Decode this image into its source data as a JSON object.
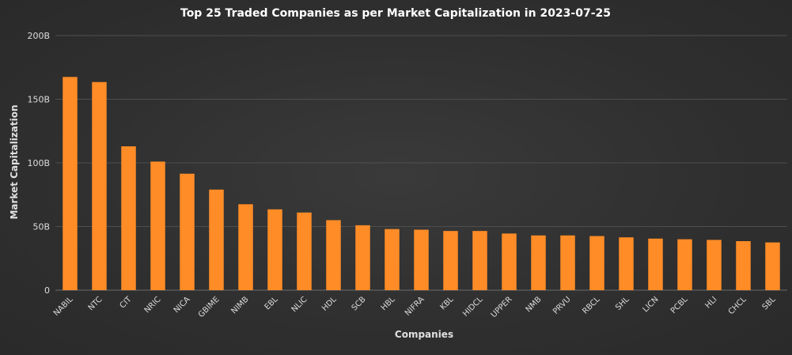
{
  "chart_data": {
    "type": "bar",
    "title": "Top 25 Traded Companies as per Market Capitalization in 2023-07-25",
    "xlabel": "Companies",
    "ylabel": "Market Capitalization",
    "ylim": [
      0,
      200
    ],
    "yticks": [
      0,
      50,
      100,
      150,
      200
    ],
    "ytick_labels": [
      "0",
      "50B",
      "100B",
      "150B",
      "200B"
    ],
    "grid": true,
    "bar_color": "#ff8c26",
    "categories": [
      "NABIL",
      "NTC",
      "CIT",
      "NRIC",
      "NICA",
      "GBIME",
      "NIMB",
      "EBL",
      "NLIC",
      "HDL",
      "SCB",
      "HBL",
      "NIFRA",
      "KBL",
      "HIDCL",
      "UPPER",
      "NMB",
      "PRVU",
      "RBCL",
      "SHL",
      "LICN",
      "PCBL",
      "HLI",
      "CHCL",
      "SBL"
    ],
    "values": [
      167.5,
      163.5,
      113,
      101,
      91.5,
      79,
      67.5,
      63.5,
      61,
      55,
      51,
      48,
      47.5,
      46.5,
      46.5,
      44.5,
      43,
      43,
      42.5,
      41.5,
      40.5,
      40,
      39.5,
      38.5,
      37.5
    ]
  }
}
